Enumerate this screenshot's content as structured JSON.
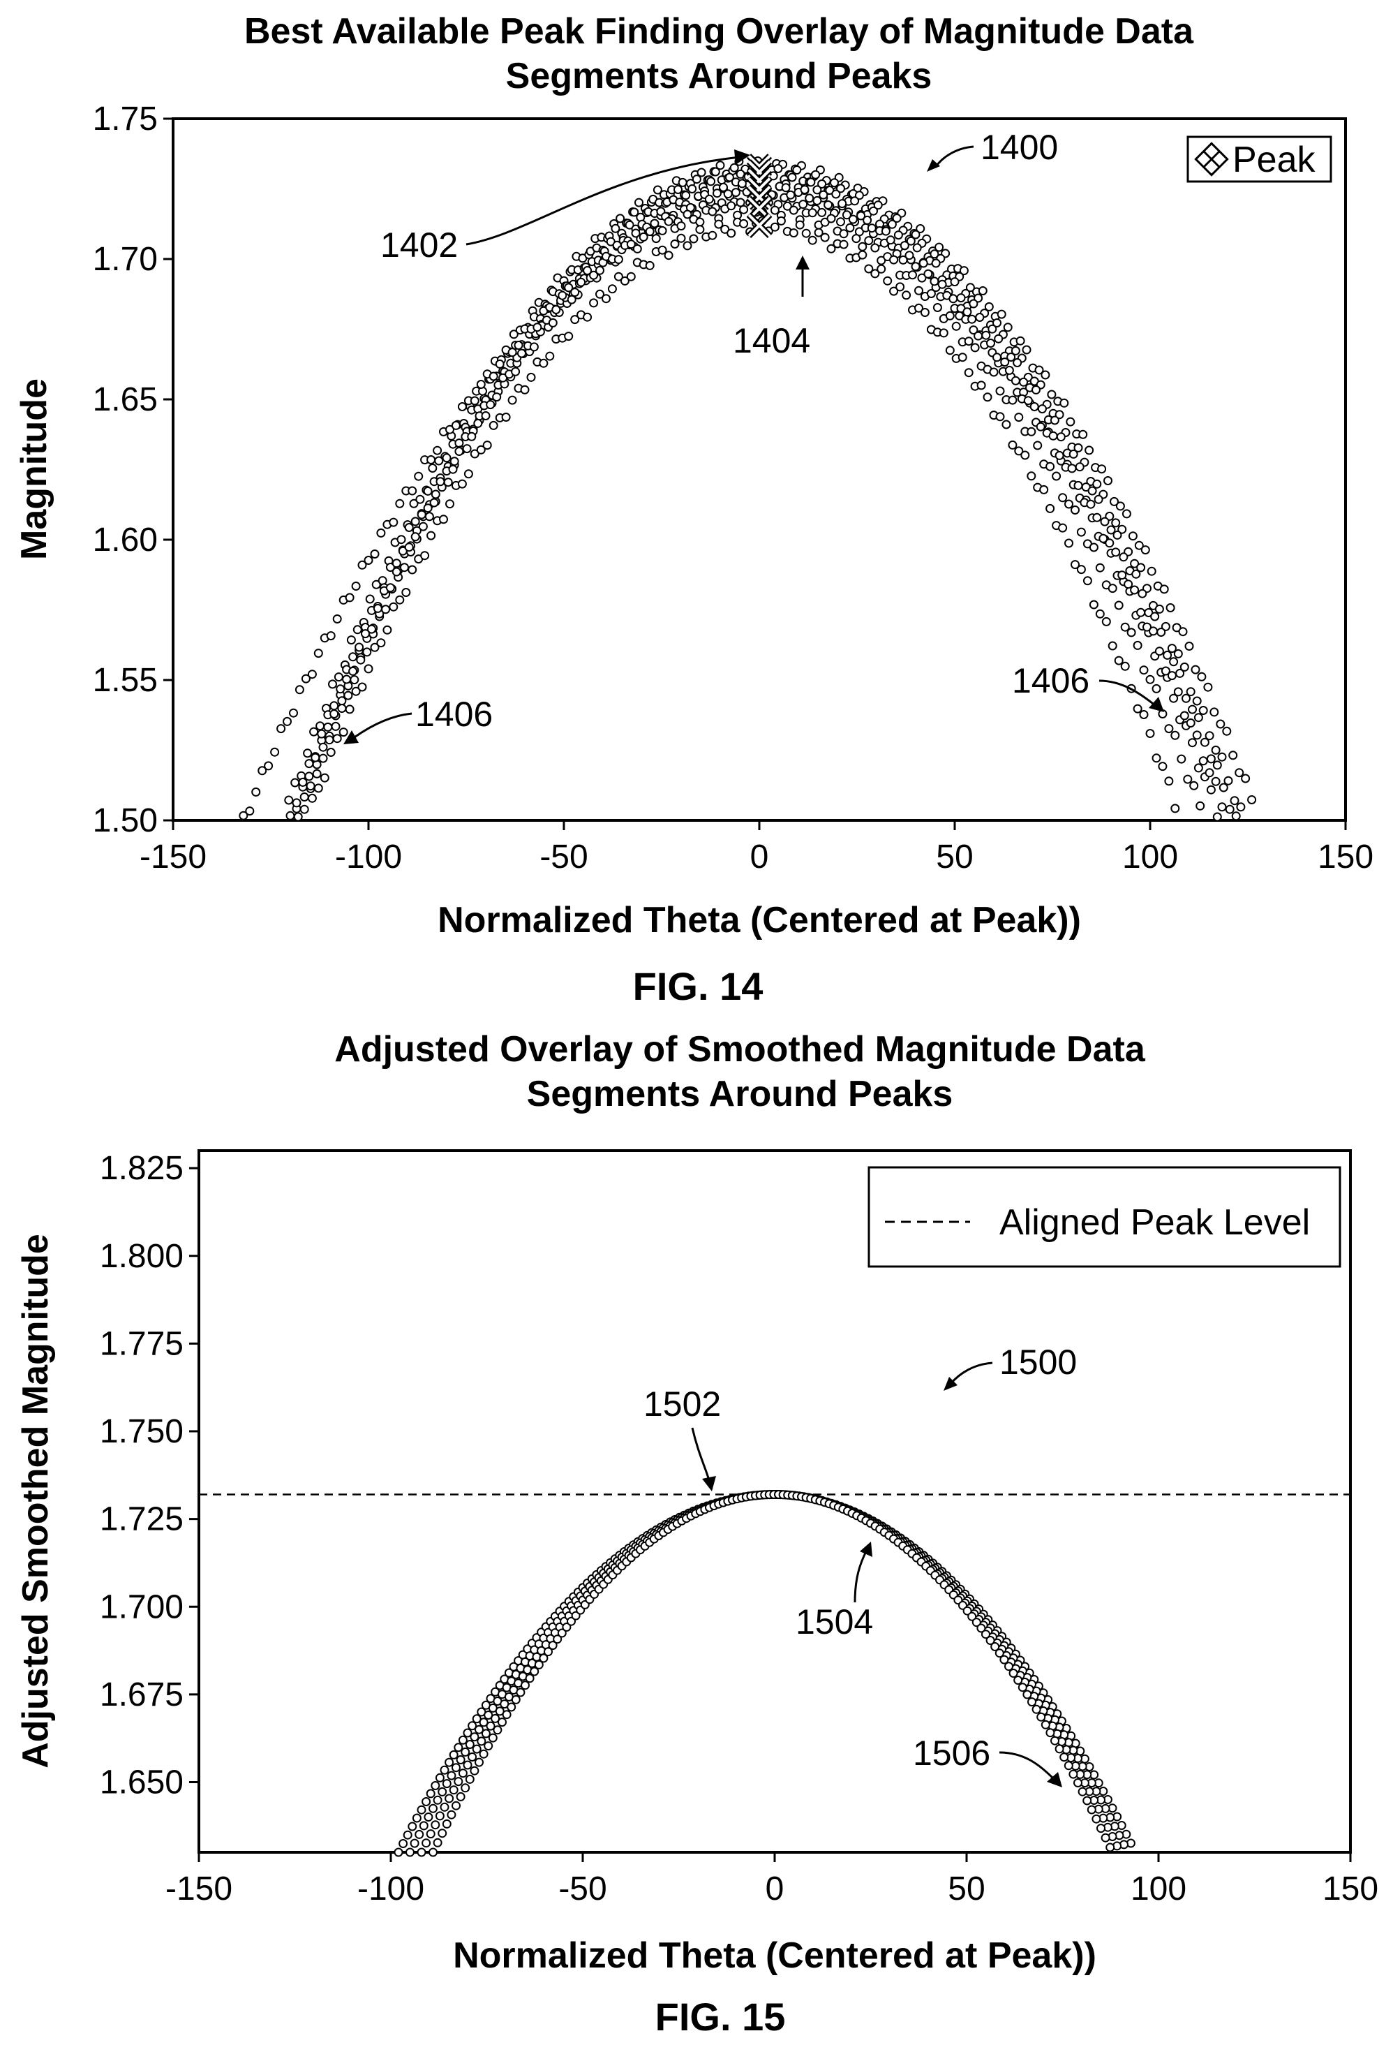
{
  "chart_data": [
    {
      "type": "scatter",
      "figure_label": "FIG. 14",
      "title_lines": [
        "Best Available Peak Finding Overlay of Magnitude Data",
        "Segments Around Peaks"
      ],
      "xlabel": "Normalized Theta (Centered at Peak))",
      "ylabel": "Magnitude",
      "xlim": [
        -150,
        150
      ],
      "ylim": [
        1.5,
        1.75
      ],
      "xticks": [
        "-150",
        "-100",
        "-50",
        "0",
        "50",
        "100",
        "150"
      ],
      "yticks": [
        "1.50",
        "1.55",
        "1.60",
        "1.65",
        "1.70",
        "1.75"
      ],
      "legend": {
        "label": "Peak",
        "placement": "top-right"
      },
      "peak_marker": {
        "x": 0,
        "y": 1.733
      },
      "annotations": [
        "1400",
        "1402",
        "1404",
        "1406",
        "1406"
      ],
      "series": [
        {
          "peak_x": 0,
          "peak_y": 1.733,
          "x_range": [
            -122,
            128
          ]
        },
        {
          "peak_x": 0,
          "peak_y": 1.731,
          "x_range": [
            -120,
            124
          ]
        },
        {
          "peak_x": 0,
          "peak_y": 1.728,
          "x_range": [
            -118,
            122
          ]
        },
        {
          "peak_x": 0,
          "peak_y": 1.725,
          "x_range": [
            -118,
            118
          ]
        },
        {
          "peak_x": 0,
          "peak_y": 1.722,
          "x_range": [
            -120,
            120
          ]
        },
        {
          "peak_x": 0,
          "peak_y": 1.718,
          "x_range": [
            -132,
            114
          ]
        },
        {
          "peak_x": 0,
          "peak_y": 1.712,
          "x_range": [
            -116,
            108
          ]
        }
      ]
    },
    {
      "type": "scatter",
      "figure_label": "FIG. 15",
      "title_lines": [
        "Adjusted Overlay of Smoothed Magnitude Data",
        "Segments Around Peaks"
      ],
      "xlabel": "Normalized Theta (Centered at Peak))",
      "ylabel": "Adjusted Smoothed Magnitude",
      "xlim": [
        -150,
        150
      ],
      "ylim": [
        1.63,
        1.83
      ],
      "xticks": [
        "-150",
        "-100",
        "-50",
        "0",
        "50",
        "100",
        "150"
      ],
      "yticks": [
        "1.650",
        "1.675",
        "1.700",
        "1.725",
        "1.750",
        "1.775",
        "1.800",
        "1.825"
      ],
      "legend": {
        "label": "Aligned Peak Level",
        "placement": "top-right"
      },
      "aligned_peak_level": 1.732,
      "annotations": [
        "1500",
        "1502",
        "1504",
        "1506"
      ],
      "series": [
        {
          "peak_x": 0,
          "peak_y": 1.732,
          "x_range": [
            -98,
            94
          ]
        },
        {
          "peak_x": 0,
          "peak_y": 1.732,
          "x_range": [
            -95,
            92
          ]
        },
        {
          "peak_x": 0,
          "peak_y": 1.732,
          "x_range": [
            -92,
            90
          ]
        },
        {
          "peak_x": 0,
          "peak_y": 1.732,
          "x_range": [
            -89,
            88
          ]
        }
      ]
    }
  ]
}
